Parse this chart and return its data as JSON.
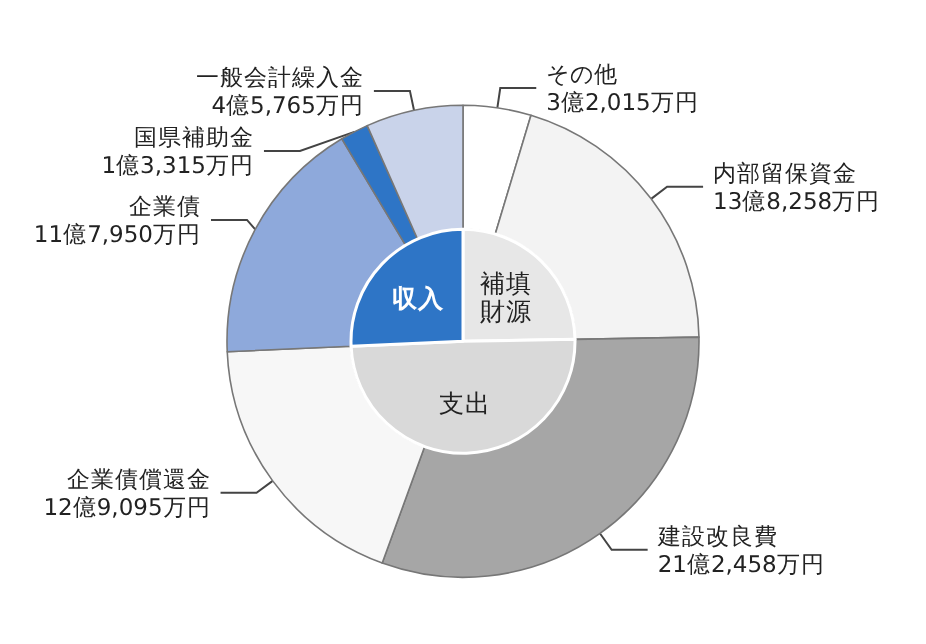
{
  "chart_data": [
    {
      "type": "pie",
      "categories": [
        "補填財源",
        "支出",
        "収入"
      ],
      "values": [
        24.7,
        49.6,
        25.7
      ],
      "colors": [
        "#e7e7e7",
        "#d9d9d9",
        "#2e75c6"
      ],
      "data_labels": false
    },
    {
      "type": "donut",
      "categories": [
        "その他\n3億2,015万円",
        "内部留保資金\n13億8,258万円",
        "建設改良費\n21億2,458万円",
        "企業債償還金\n12億9,095万円",
        "企業債\n11億7,950万円",
        "国県補助金\n1億3,315万円",
        "一般会計繰入金\n4億5,765万円"
      ],
      "values": [
        4.65,
        20.07,
        30.84,
        18.74,
        17.12,
        1.93,
        6.65
      ],
      "colors": [
        "#ffffff",
        "#f3f3f3",
        "#a6a6a6",
        "#f7f7f7",
        "#8ea9db",
        "#2e75c6",
        "#c9d3ea"
      ]
    }
  ]
}
